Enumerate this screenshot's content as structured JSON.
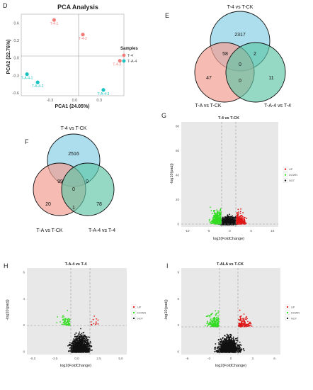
{
  "panel_letters": {
    "d": "D",
    "e": "E",
    "f": "F",
    "g": "G",
    "h": "H",
    "i": "I"
  },
  "colors": {
    "t4": "#f07f7c",
    "ta4": "#19c2c1",
    "venn_top": "#9fd8ea",
    "venn_left": "#f2a093",
    "venn_right": "#5cc4a6",
    "up": "#e01515",
    "down": "#33dd22",
    "not": "#111111",
    "volcano_bg": "#e8e8e8"
  },
  "chart_data": [
    {
      "id": "pca",
      "type": "scatter",
      "title": "PCA Analysis",
      "xlabel": "PCA1 (24.05%)",
      "ylabel": "PCA2 (22.76%)",
      "xlim": [
        -0.65,
        0.6
      ],
      "ylim": [
        -0.65,
        0.75
      ],
      "xticks": [
        "-0.3",
        "0.0",
        "0.3"
      ],
      "xtick_values": [
        -0.3,
        0.0,
        0.3
      ],
      "yticks": [
        "0.6",
        "0.3",
        "0.0",
        "-0.3",
        "-0.6"
      ],
      "ytick_values": [
        0.6,
        0.3,
        0.0,
        -0.3,
        -0.6
      ],
      "legend_title": "Samples",
      "legend_position": "right",
      "series": [
        {
          "name": "T-4",
          "points": [
            {
              "x": -0.25,
              "y": 0.65,
              "label": "T-4-1"
            },
            {
              "x": 0.1,
              "y": 0.4,
              "label": "T-4-2"
            },
            {
              "x": 0.55,
              "y": -0.05,
              "label": "T-4-3"
            }
          ]
        },
        {
          "name": "T-A-4",
          "points": [
            {
              "x": -0.58,
              "y": -0.28,
              "label": "T-A-4-1"
            },
            {
              "x": -0.45,
              "y": -0.42,
              "label": "T-A-4-2"
            },
            {
              "x": 0.35,
              "y": -0.55,
              "label": "T-A-4-3"
            }
          ]
        }
      ]
    },
    {
      "id": "venn-e",
      "type": "venn",
      "sets": [
        "T-4 vs T-CK",
        "T-A vs T-CK",
        "T-A-4 vs T-4"
      ],
      "regions": {
        "top_only": "2317",
        "left_only": "47",
        "right_only": "11",
        "top_left": "58",
        "top_right": "2",
        "left_right": "0",
        "all": "0"
      }
    },
    {
      "id": "venn-f",
      "type": "venn",
      "sets": [
        "T-4 vs T-CK",
        "T-A vs T-CK",
        "T-A-4 vs T-4"
      ],
      "regions": {
        "top_only": "2516",
        "left_only": "20",
        "right_only": "78",
        "top_left": "99",
        "top_right": "0",
        "left_right": "1",
        "all": "0"
      }
    },
    {
      "id": "volcano-g",
      "type": "scatter",
      "title": "T-4 vs T-CK",
      "xlabel": "log2(FoldChange)",
      "ylabel": "-log10(padj)",
      "xticks": [
        "-10",
        "-5",
        "0",
        "5",
        "10"
      ],
      "yticks": [
        "0",
        "20",
        "40",
        "60",
        "80"
      ],
      "legend": [
        "UP",
        "DOWN",
        "NOT"
      ],
      "legend_position": "right"
    },
    {
      "id": "volcano-h",
      "type": "scatter",
      "title": "T-A-4 vs T-4",
      "xlabel": "log2(FoldChange)",
      "ylabel": "-log10(padj)",
      "xticks": [
        "-5.0",
        "-2.5",
        "0.0",
        "2.5",
        "5.0"
      ],
      "yticks": [
        "0",
        "2",
        "4",
        "6"
      ],
      "legend": [
        "UP",
        "DOWN",
        "NOT"
      ],
      "legend_position": "right"
    },
    {
      "id": "volcano-i",
      "type": "scatter",
      "title": "T-ALA vs T-CK",
      "xlabel": "log2(FoldChange)",
      "ylabel": "-log10(padj)",
      "xticks": [
        "-6",
        "-3",
        "0",
        "3",
        "6"
      ],
      "yticks": [
        "0",
        "3",
        "6",
        "9"
      ],
      "legend": [
        "UP",
        "DOWN",
        "NOT"
      ],
      "legend_position": "right"
    }
  ]
}
